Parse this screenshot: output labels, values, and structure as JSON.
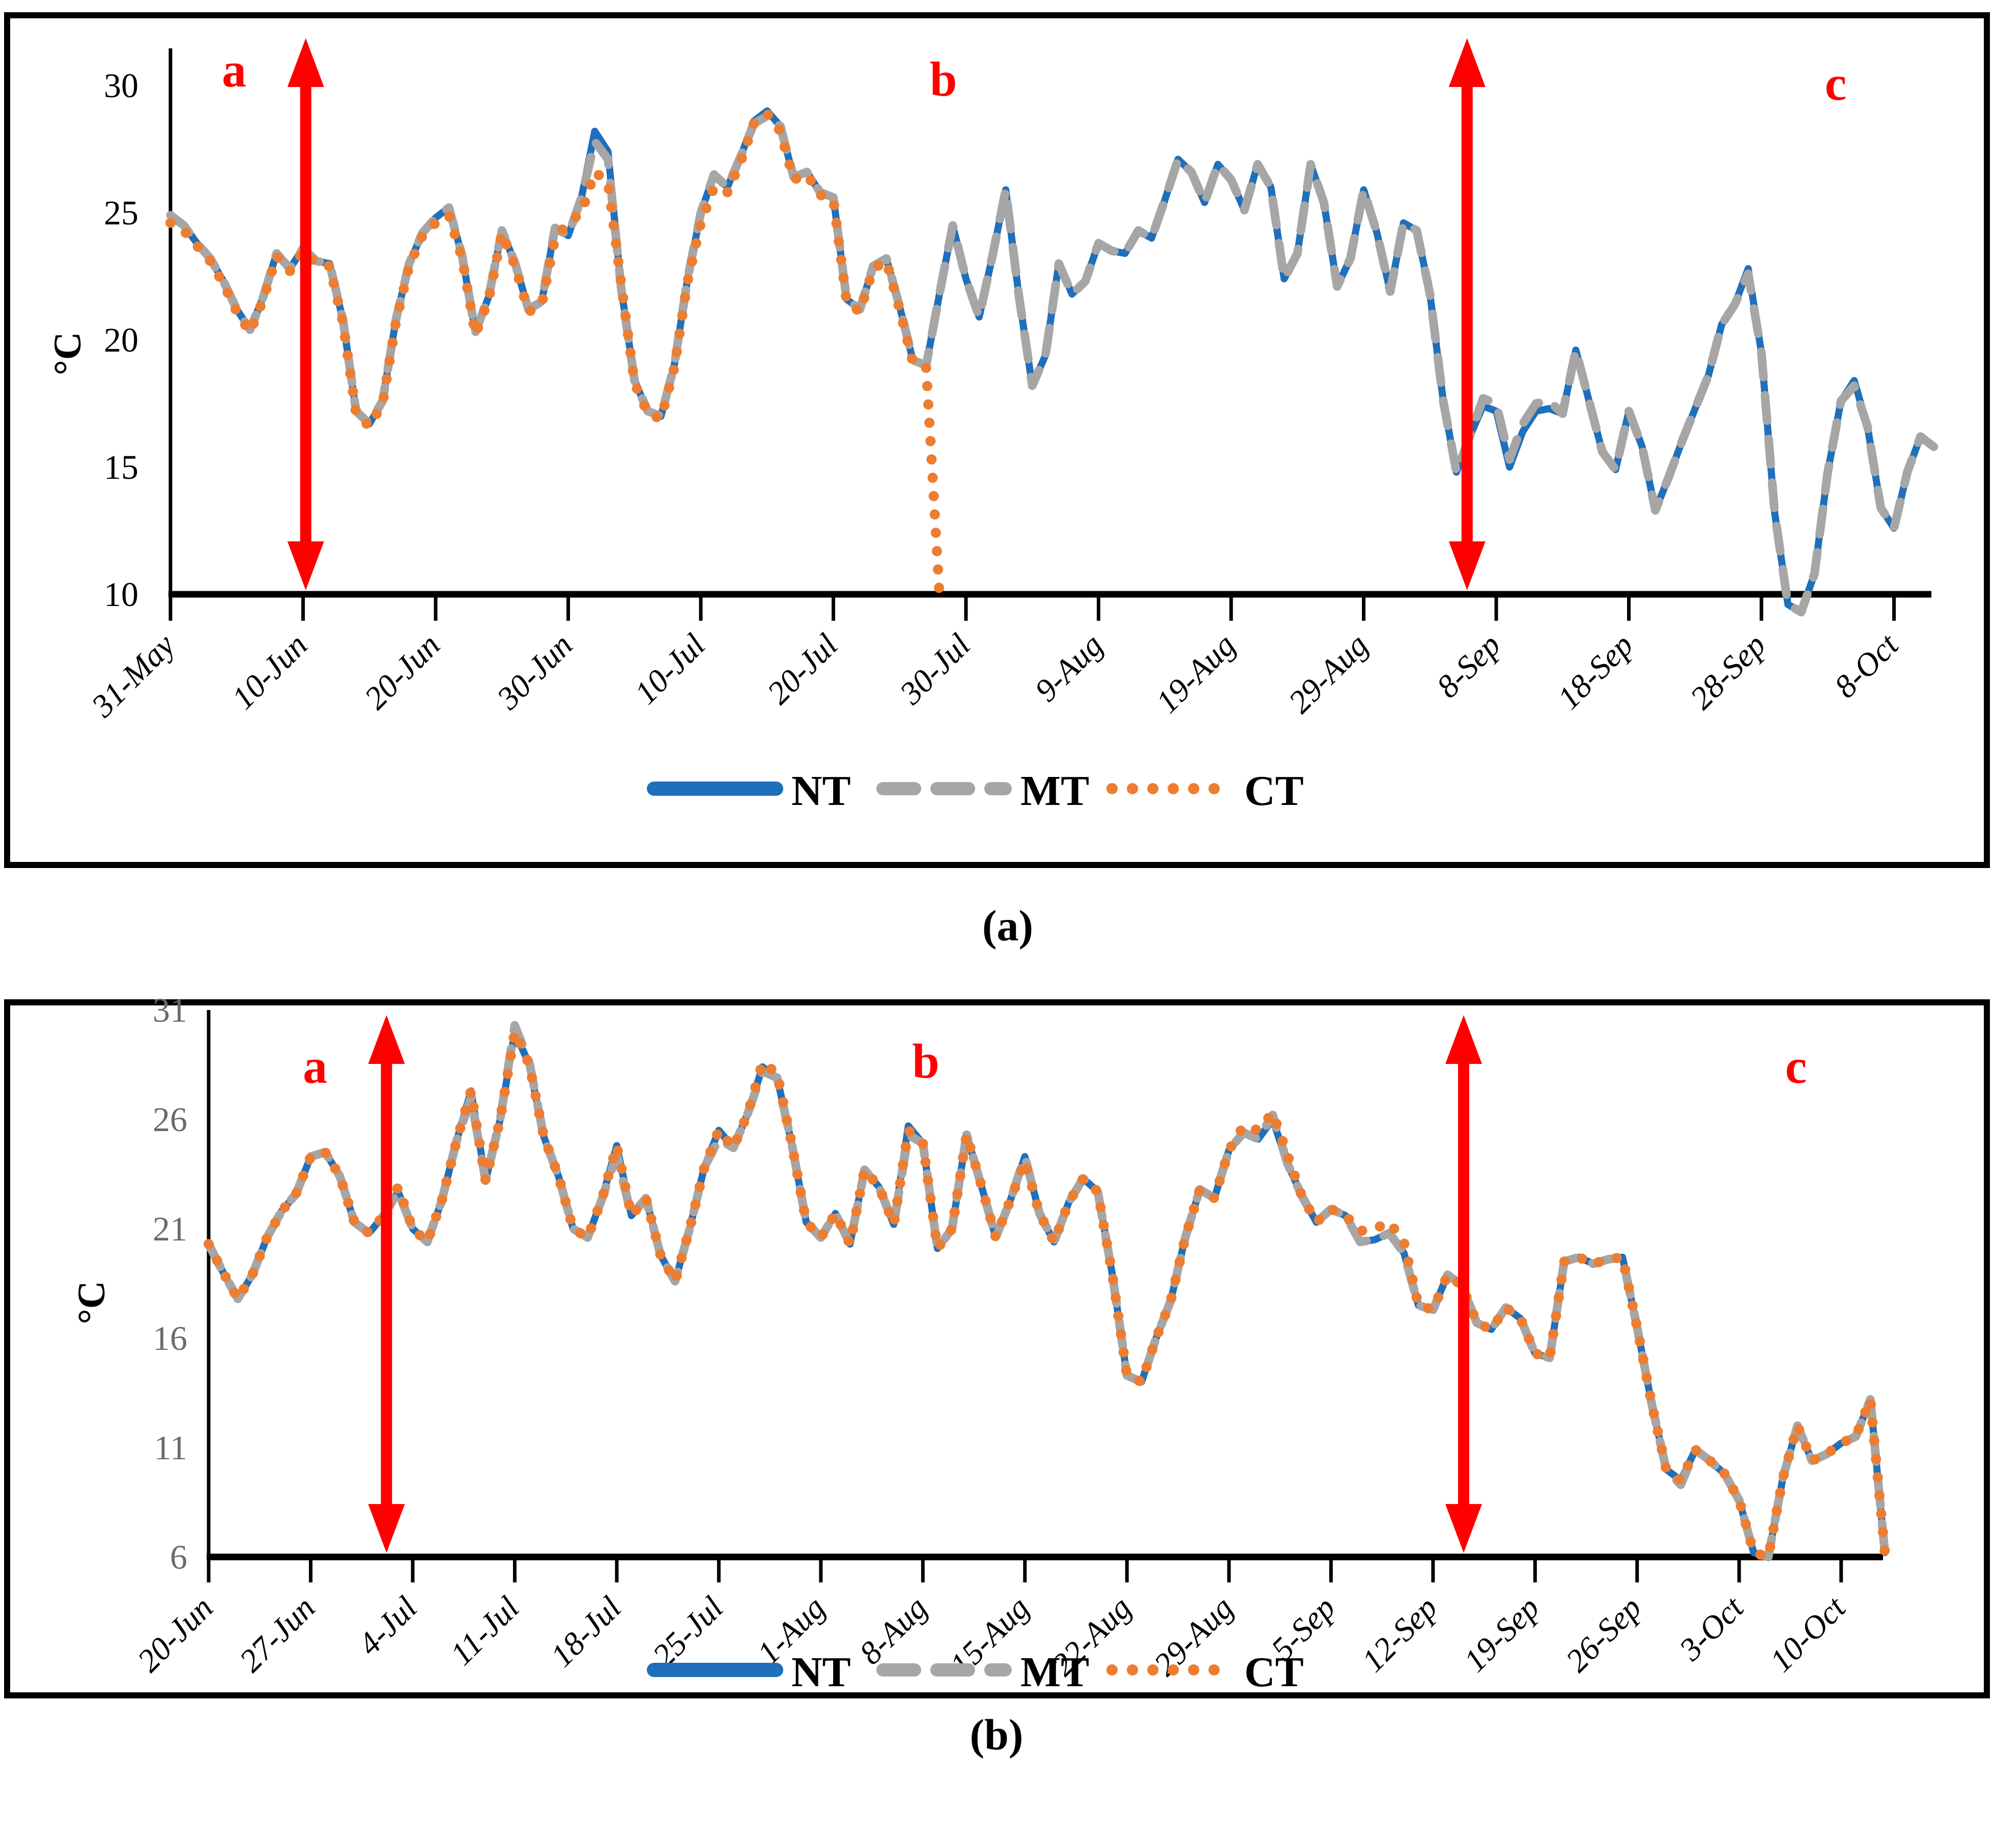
{
  "figure": {
    "background": "#ffffff"
  },
  "annotation_color": "#fe0000",
  "legend": {
    "items": [
      {
        "label": "NT",
        "color": "#1e6fbc",
        "style": "solid"
      },
      {
        "label": "MT",
        "color": "#a6a6a6",
        "style": "dashed"
      },
      {
        "label": "CT",
        "color": "#ed7d31",
        "style": "dotted"
      }
    ]
  },
  "panels": [
    {
      "caption": "(a)",
      "y_axis_label": "°C",
      "markers": [
        {
          "label": "a"
        },
        {
          "label": "b"
        },
        {
          "label": "c"
        }
      ],
      "chart_data": {
        "type": "line",
        "x_unit": "days from 31-May",
        "x_tick_labels": [
          "31-May",
          "10-Jun",
          "20-Jun",
          "30-Jun",
          "10-Jul",
          "20-Jul",
          "30-Jul",
          "9-Aug",
          "19-Aug",
          "29-Aug",
          "8-Sep",
          "18-Sep",
          "28-Sep",
          "8-Oct"
        ],
        "x_tick_days": [
          0,
          10,
          20,
          30,
          40,
          50,
          60,
          70,
          80,
          90,
          100,
          110,
          120,
          130
        ],
        "y_ticks": [
          10,
          15,
          20,
          25,
          30
        ],
        "ylim": [
          10,
          31.6
        ],
        "xlim": [
          0,
          133
        ],
        "grid": false,
        "legend_position": "bottom",
        "arrow_days": [
          10.2,
          97.8
        ],
        "marker_days": [
          4.8,
          58.3,
          125.6
        ],
        "series": [
          {
            "name": "NT",
            "color": "#1e6fbc",
            "style": "solid",
            "values": [
              24.9,
              24.5,
              23.8,
              23.2,
              22.3,
              21.2,
              20.4,
              21.7,
              23.4,
              22.8,
              23.6,
              23.1,
              23.0,
              20.8,
              17.2,
              16.7,
              17.6,
              20.8,
              23.0,
              24.2,
              24.8,
              25.2,
              23.3,
              20.3,
              21.7,
              24.3,
              23.0,
              21.2,
              21.5,
              24.4,
              24.1,
              25.6,
              28.2,
              27.4,
              22.0,
              18.4,
              17.2,
              17.0,
              19.0,
              22.4,
              25.0,
              26.5,
              26.0,
              27.2,
              28.6,
              29.0,
              28.4,
              26.4,
              26.6,
              25.8,
              25.6,
              21.6,
              21.2,
              22.9,
              23.2,
              21.3,
              19.2,
              19.0,
              21.8,
              24.5,
              22.4,
              20.9,
              23.3,
              25.9,
              21.7,
              18.2,
              19.4,
              23.0,
              21.8,
              22.3,
              23.8,
              23.5,
              23.4,
              24.3,
              24.0,
              25.5,
              27.1,
              26.6,
              25.4,
              26.9,
              26.3,
              25.1,
              26.9,
              26.0,
              22.4,
              23.4,
              26.9,
              25.4,
              22.1,
              23.2,
              25.9,
              24.2,
              21.9,
              24.6,
              24.3,
              21.8,
              17.6,
              14.8,
              16.2,
              17.4,
              17.2,
              15.0,
              16.4,
              17.2,
              17.3,
              17.1,
              19.6,
              17.6,
              15.6,
              14.9,
              17.2,
              15.8,
              13.3,
              14.6,
              16.0,
              17.3,
              18.6,
              20.6,
              21.4,
              22.8,
              19.5,
              13.2,
              9.6,
              9.3,
              10.8,
              14.8,
              17.6,
              18.4,
              16.6,
              13.4,
              12.6,
              14.8,
              16.2,
              15.8
            ]
          },
          {
            "name": "MT",
            "color": "#a6a6a6",
            "style": "dashed",
            "values": [
              24.9,
              24.5,
              23.8,
              23.2,
              22.3,
              21.2,
              20.4,
              21.7,
              23.4,
              22.8,
              23.6,
              23.1,
              23.0,
              20.8,
              17.2,
              16.7,
              17.6,
              20.8,
              23.0,
              24.2,
              24.8,
              25.2,
              23.3,
              20.3,
              21.7,
              24.3,
              23.0,
              21.2,
              21.5,
              24.4,
              24.1,
              25.6,
              27.8,
              27.1,
              22.0,
              18.4,
              17.2,
              17.0,
              19.0,
              22.4,
              25.0,
              26.5,
              26.0,
              27.2,
              28.5,
              28.8,
              28.4,
              26.4,
              26.6,
              25.8,
              25.6,
              21.6,
              21.2,
              22.9,
              23.2,
              21.3,
              19.2,
              19.0,
              21.8,
              24.5,
              22.4,
              20.9,
              23.3,
              25.9,
              21.7,
              18.2,
              19.4,
              23.0,
              21.8,
              22.3,
              23.8,
              23.5,
              23.4,
              24.3,
              24.0,
              25.5,
              27.1,
              26.6,
              25.4,
              26.9,
              26.3,
              25.1,
              26.9,
              26.0,
              22.4,
              23.4,
              26.9,
              25.4,
              22.1,
              23.2,
              25.9,
              24.2,
              21.9,
              24.6,
              24.3,
              21.8,
              17.6,
              14.8,
              16.2,
              17.7,
              17.5,
              15.3,
              16.7,
              17.5,
              17.6,
              17.1,
              19.6,
              17.6,
              15.6,
              14.9,
              17.2,
              15.8,
              13.3,
              14.6,
              16.0,
              17.3,
              18.6,
              20.6,
              21.4,
              22.6,
              19.5,
              13.2,
              9.6,
              9.3,
              10.8,
              14.8,
              17.6,
              18.2,
              16.6,
              13.4,
              12.6,
              14.8,
              16.2,
              15.8
            ]
          },
          {
            "name": "CT",
            "color": "#ed7d31",
            "style": "dotted",
            "values": [
              24.6,
              24.3,
              23.7,
              23.1,
              22.2,
              21.1,
              20.3,
              21.6,
              23.3,
              22.7,
              23.5,
              23.0,
              22.9,
              20.7,
              17.1,
              16.6,
              17.5,
              20.7,
              22.9,
              24.1,
              24.6,
              24.9,
              23.2,
              20.2,
              21.6,
              24.2,
              22.9,
              21.1,
              21.4,
              24.0,
              24.6,
              25.0,
              26.6,
              26.2,
              22.2,
              18.3,
              17.1,
              16.9,
              18.9,
              22.3,
              24.6,
              26.0,
              25.8,
              27.0,
              28.5,
              28.9,
              28.2,
              26.3,
              26.5,
              25.7,
              25.5,
              21.5,
              21.1,
              22.8,
              23.1,
              21.2,
              19.1,
              18.9,
              10.0,
              null,
              null,
              null,
              null,
              null,
              null,
              null,
              null,
              null,
              null,
              null,
              null,
              null,
              null,
              null,
              null,
              null,
              null,
              null,
              null,
              null,
              null,
              null,
              null,
              null,
              null,
              null,
              null,
              null,
              null,
              null,
              null,
              null,
              null,
              null,
              null,
              null,
              null,
              null,
              null,
              null,
              null,
              null,
              null,
              null,
              null,
              null,
              null,
              null,
              null,
              null,
              null,
              null,
              null,
              null,
              null,
              null,
              null,
              null,
              null,
              null,
              null,
              null,
              null,
              null,
              null,
              null,
              null,
              null,
              null,
              null,
              null,
              null,
              null,
              null
            ]
          }
        ]
      }
    },
    {
      "caption": "(b)",
      "y_axis_label": "°C",
      "markers": [
        {
          "label": "a"
        },
        {
          "label": "b"
        },
        {
          "label": "c"
        }
      ],
      "chart_data": {
        "type": "line",
        "x_unit": "days from 20-Jun",
        "x_tick_labels": [
          "20-Jun",
          "27-Jun",
          "4-Jul",
          "11-Jul",
          "18-Jul",
          "25-Jul",
          "1-Aug",
          "8-Aug",
          "15-Aug",
          "22-Aug",
          "29-Aug",
          "5-Sep",
          "12-Sep",
          "19-Sep",
          "26-Sep",
          "3-Oct",
          "10-Oct"
        ],
        "x_tick_days": [
          0,
          7,
          14,
          21,
          28,
          35,
          42,
          49,
          56,
          63,
          70,
          77,
          84,
          91,
          98,
          105,
          112
        ],
        "y_ticks": [
          6,
          11,
          16,
          21,
          26,
          31
        ],
        "ylim": [
          6,
          31.7
        ],
        "xlim": [
          0,
          115
        ],
        "grid": false,
        "legend_position": "bottom",
        "arrow_days": [
          12.2,
          86.1
        ],
        "marker_days": [
          7.3,
          49.2,
          108.9
        ],
        "series": [
          {
            "name": "NT",
            "color": "#1e6fbc",
            "style": "solid",
            "values": [
              20.3,
              19.0,
              17.8,
              18.9,
              20.6,
              21.8,
              22.6,
              24.3,
              24.5,
              23.4,
              21.3,
              20.8,
              21.6,
              22.7,
              21.0,
              20.4,
              22.3,
              25.0,
              27.3,
              23.2,
              26.0,
              30.0,
              28.5,
              25.2,
              23.4,
              21.0,
              20.6,
              22.4,
              24.8,
              21.6,
              22.4,
              19.8,
              18.6,
              21.0,
              23.8,
              25.5,
              24.7,
              26.3,
              28.4,
              27.9,
              24.9,
              21.3,
              20.6,
              21.7,
              20.3,
              23.7,
              22.9,
              21.2,
              25.7,
              24.9,
              20.1,
              21.0,
              25.3,
              23.0,
              20.6,
              22.3,
              24.3,
              21.7,
              20.4,
              22.2,
              23.3,
              22.7,
              18.9,
              14.3,
              14.0,
              16.0,
              17.7,
              20.6,
              22.8,
              22.4,
              24.6,
              25.4,
              25.1,
              26.0,
              24.0,
              22.5,
              21.3,
              21.9,
              21.6,
              20.4,
              20.5,
              20.8,
              19.9,
              17.5,
              17.3,
              18.9,
              18.4,
              16.7,
              16.4,
              17.4,
              16.9,
              15.3,
              15.1,
              19.5,
              19.7,
              19.4,
              19.6,
              19.7,
              16.5,
              13.0,
              10.0,
              9.5,
              10.9,
              10.4,
              9.8,
              8.6,
              6.2,
              6.0,
              9.6,
              12.0,
              10.4,
              10.7,
              11.2,
              11.5,
              13.2,
              6.2
            ]
          },
          {
            "name": "MT",
            "color": "#a6a6a6",
            "style": "dashed",
            "values": [
              20.3,
              19.0,
              17.8,
              18.9,
              20.6,
              21.8,
              22.6,
              24.3,
              24.5,
              23.4,
              21.3,
              20.8,
              21.6,
              22.7,
              21.0,
              20.4,
              22.3,
              25.0,
              27.0,
              23.2,
              26.0,
              30.3,
              28.6,
              25.2,
              23.4,
              21.0,
              20.6,
              22.4,
              24.4,
              21.6,
              22.4,
              19.8,
              18.6,
              21.0,
              23.8,
              25.1,
              24.7,
              26.3,
              28.2,
              27.9,
              24.9,
              21.3,
              20.6,
              21.7,
              20.3,
              23.7,
              22.9,
              21.2,
              25.3,
              24.9,
              20.1,
              21.0,
              25.3,
              23.0,
              20.6,
              22.3,
              24.3,
              21.7,
              20.4,
              22.2,
              23.3,
              22.7,
              18.9,
              14.3,
              14.0,
              16.0,
              17.7,
              20.6,
              22.8,
              22.4,
              24.6,
              25.4,
              25.1,
              26.2,
              24.0,
              22.5,
              21.3,
              21.9,
              21.6,
              20.4,
              20.5,
              20.8,
              19.9,
              17.5,
              17.3,
              18.9,
              18.4,
              16.7,
              16.4,
              17.4,
              16.9,
              15.3,
              15.1,
              19.5,
              19.7,
              19.4,
              19.6,
              19.7,
              16.5,
              13.0,
              10.0,
              9.3,
              10.9,
              10.4,
              9.8,
              8.6,
              6.2,
              6.0,
              9.6,
              12.0,
              10.4,
              10.7,
              11.2,
              11.5,
              13.2,
              6.2
            ]
          },
          {
            "name": "CT",
            "color": "#ed7d31",
            "style": "dotted",
            "values": [
              20.3,
              19.0,
              17.8,
              18.9,
              20.6,
              21.8,
              22.6,
              24.3,
              24.5,
              23.4,
              21.3,
              20.8,
              21.6,
              22.9,
              21.0,
              20.4,
              22.3,
              25.0,
              27.3,
              23.2,
              26.0,
              30.0,
              28.5,
              25.2,
              23.4,
              21.0,
              20.6,
              22.4,
              24.8,
              21.6,
              22.4,
              19.8,
              18.6,
              21.0,
              23.8,
              25.5,
              24.7,
              26.3,
              28.6,
              28.1,
              24.9,
              21.3,
              20.6,
              21.7,
              20.3,
              23.7,
              22.9,
              21.2,
              25.5,
              24.9,
              20.1,
              21.0,
              25.3,
              23.0,
              20.6,
              22.3,
              24.1,
              21.7,
              20.4,
              22.2,
              23.3,
              22.7,
              18.9,
              14.3,
              14.0,
              16.0,
              17.7,
              20.6,
              22.8,
              22.4,
              24.6,
              25.7,
              25.5,
              26.3,
              24.4,
              22.5,
              21.3,
              21.9,
              21.6,
              20.9,
              21.0,
              21.3,
              20.4,
              17.5,
              17.3,
              18.9,
              18.4,
              16.7,
              16.4,
              17.4,
              16.9,
              15.3,
              15.1,
              19.5,
              19.7,
              19.4,
              19.6,
              19.7,
              16.5,
              13.0,
              10.0,
              9.5,
              10.9,
              10.4,
              9.8,
              8.6,
              6.2,
              6.0,
              9.6,
              12.0,
              10.4,
              10.7,
              11.2,
              11.5,
              13.2,
              6.2
            ]
          }
        ]
      }
    }
  ]
}
